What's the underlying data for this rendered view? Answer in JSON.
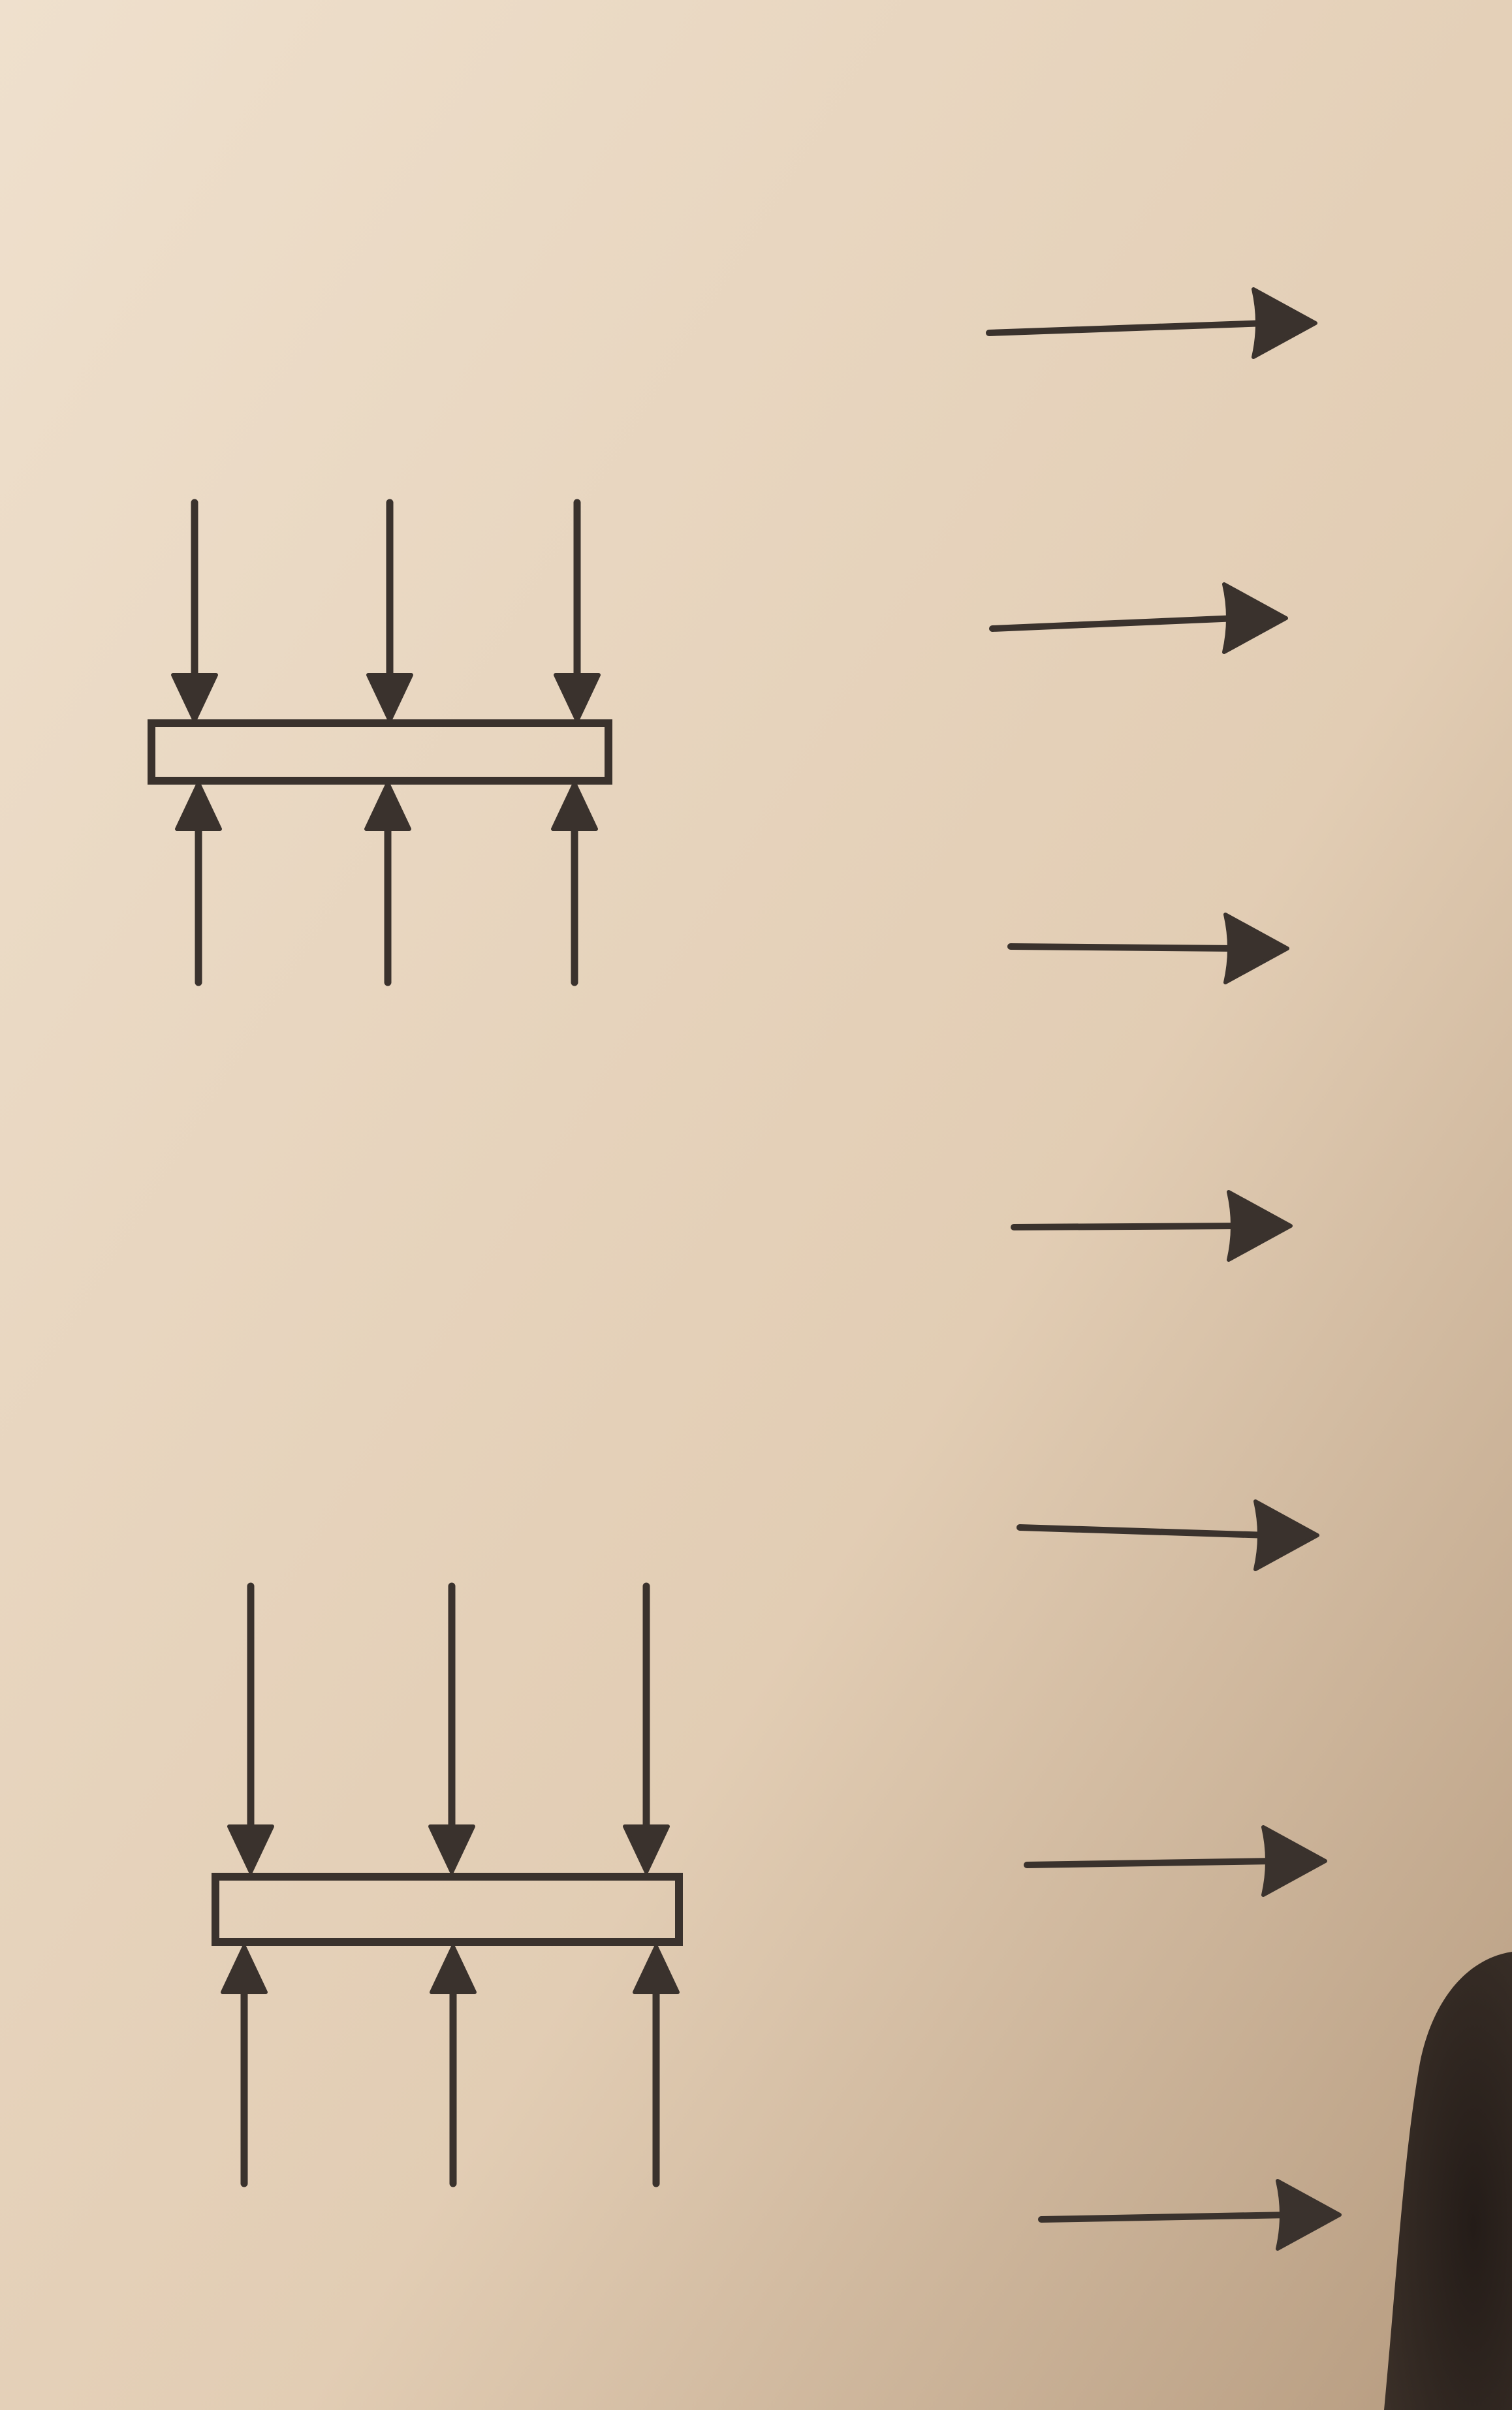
{
  "colors": {
    "paper_light": "#efe0cd",
    "paper_mid": "#e2cdb4",
    "paper_shadow": "#b59a7e",
    "ink": "#3a322d",
    "thumb_shadow": "#241c18"
  },
  "icons": {
    "force_arrow": "arrow-icon",
    "plate": "rectangle"
  },
  "diagram": {
    "compressed_plates": 2,
    "arrows_per_side": 3,
    "field_arrows": 7,
    "arrow_direction": "right"
  }
}
